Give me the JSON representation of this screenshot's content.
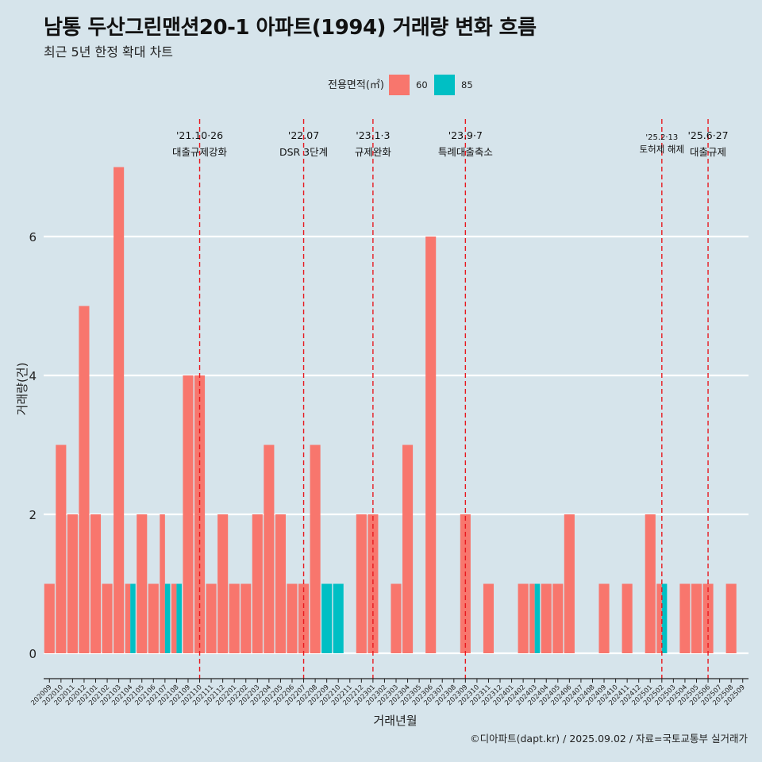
{
  "chart_data": {
    "type": "bar",
    "title": "남통 두산그린맨션20-1 아파트(1994) 거래량 변화 흐름",
    "subtitle": "최근 5년 한정 확대 차트",
    "xlabel": "거래년월",
    "ylabel": "거래량(건)",
    "caption": "©디아파트(dapt.kr) / 2025.09.02 / 자료=국토교통부 실거래가",
    "legend_title": "전용면적(㎡)",
    "legend_position": "top",
    "grid": true,
    "yticks": [
      0,
      2,
      4,
      6
    ],
    "ylim": [
      0,
      7.4
    ],
    "categories": [
      "202009",
      "202010",
      "202011",
      "202012",
      "202101",
      "202102",
      "202103",
      "202104",
      "202105",
      "202106",
      "202107",
      "202108",
      "202109",
      "202110",
      "202111",
      "202112",
      "202201",
      "202202",
      "202203",
      "202204",
      "202205",
      "202206",
      "202207",
      "202208",
      "202209",
      "202210",
      "202211",
      "202212",
      "202301",
      "202302",
      "202303",
      "202304",
      "202305",
      "202306",
      "202307",
      "202308",
      "202309",
      "202310",
      "202311",
      "202312",
      "202401",
      "202402",
      "202403",
      "202404",
      "202405",
      "202406",
      "202407",
      "202408",
      "202409",
      "202410",
      "202411",
      "202412",
      "202501",
      "202502",
      "202503",
      "202504",
      "202505",
      "202506",
      "202507",
      "202508",
      "202509"
    ],
    "series": [
      {
        "name": "60",
        "color": "#f8766d",
        "values": [
          1,
          3,
          2,
          5,
          2,
          1,
          7,
          1,
          2,
          1,
          2,
          1,
          4,
          4,
          1,
          2,
          1,
          1,
          2,
          3,
          2,
          1,
          1,
          3,
          0,
          0,
          0,
          2,
          2,
          0,
          1,
          3,
          0,
          6,
          0,
          0,
          2,
          0,
          1,
          0,
          0,
          1,
          1,
          1,
          1,
          2,
          0,
          0,
          1,
          0,
          1,
          0,
          2,
          1,
          0,
          1,
          1,
          1,
          0,
          1,
          0
        ]
      },
      {
        "name": "85",
        "color": "#00bfc4",
        "values": [
          0,
          0,
          0,
          0,
          0,
          0,
          0,
          1,
          0,
          0,
          1,
          1,
          0,
          0,
          0,
          0,
          0,
          0,
          0,
          0,
          0,
          0,
          0,
          0,
          1,
          1,
          0,
          0,
          0,
          0,
          0,
          0,
          0,
          0,
          0,
          0,
          0,
          0,
          0,
          0,
          0,
          0,
          1,
          0,
          0,
          0,
          0,
          0,
          0,
          0,
          0,
          0,
          0,
          1,
          0,
          0,
          0,
          0,
          0,
          0,
          0
        ]
      }
    ],
    "annotations": [
      {
        "category": "202110",
        "date": "'21.10·26",
        "label": "대출규제강화"
      },
      {
        "category": "202207",
        "date": "'22.07",
        "label": "DSR 3단계"
      },
      {
        "category": "202301",
        "date": "'23.1·3",
        "label": "규제완화"
      },
      {
        "category": "202309",
        "date": "'23.9·7",
        "label": "특례대출축소"
      },
      {
        "category": "202502",
        "date": "'25.2·13",
        "label": "토허제 해제"
      },
      {
        "category": "202506",
        "date": "'25.6·27",
        "label": "대출규제"
      }
    ]
  }
}
